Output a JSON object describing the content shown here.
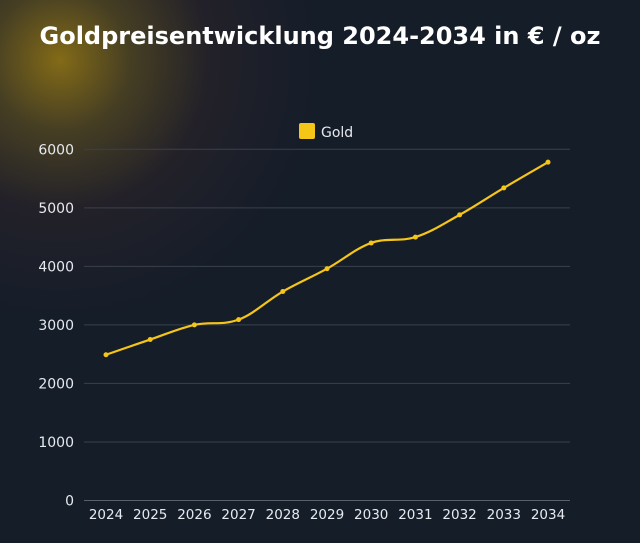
{
  "chart_data": {
    "type": "line",
    "title": "Goldpreisentwicklung 2024-2034 in € / oz",
    "xlabel": "",
    "ylabel": "",
    "categories": [
      "2024",
      "2025",
      "2026",
      "2027",
      "2028",
      "2029",
      "2030",
      "2031",
      "2032",
      "2033",
      "2034"
    ],
    "series": [
      {
        "name": "Gold",
        "values": [
          2490,
          2750,
          3000,
          3090,
          3570,
          3960,
          4400,
          4500,
          4880,
          5340,
          5780
        ],
        "color": "#f5c518"
      }
    ],
    "yticks": [
      "0",
      "1000",
      "2000",
      "3000",
      "4000",
      "5000",
      "6000"
    ],
    "ylim": [
      0,
      6000
    ],
    "grid": true,
    "legend": "top-center",
    "background": "#151d29"
  }
}
